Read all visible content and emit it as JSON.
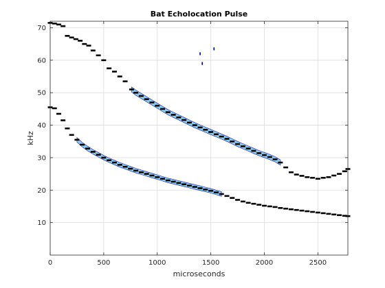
{
  "chart_data": {
    "type": "scatter",
    "title": "Bat Echolocation Pulse",
    "xlabel": "microseconds",
    "ylabel": "kHz",
    "xlim": [
      0,
      2780
    ],
    "ylim": [
      0,
      72
    ],
    "xticks": [
      0,
      500,
      1000,
      1500,
      2000,
      2500
    ],
    "yticks": [
      10,
      20,
      30,
      40,
      50,
      60,
      70
    ],
    "grid": true,
    "series": [
      {
        "color": "#000000",
        "x": [
          0,
          40,
          80,
          120,
          160,
          200,
          240,
          280,
          320,
          360,
          400,
          450,
          500,
          550,
          600,
          650,
          700,
          760,
          800,
          850,
          900,
          950,
          1000,
          1050,
          1100,
          1150,
          1200,
          1250,
          1300,
          1350,
          1400,
          1450,
          1500,
          1550,
          1600,
          1650,
          1700,
          1750,
          1800,
          1850,
          1900,
          1950,
          2000,
          2050,
          2100,
          2150,
          2200,
          2250,
          2300,
          2350,
          2400,
          2450,
          2500,
          2550,
          2600,
          2650,
          2700,
          2750,
          2780
        ],
        "y": [
          71.5,
          71.3,
          71.0,
          70.5,
          67.5,
          67.0,
          66.5,
          66.0,
          65.0,
          64.5,
          63.0,
          61.5,
          60.0,
          57.5,
          56.5,
          55.0,
          53.5,
          51.0,
          50.0,
          49.0,
          48.0,
          47.0,
          46.0,
          45.0,
          44.0,
          43.2,
          42.4,
          41.6,
          40.8,
          40.0,
          39.3,
          38.6,
          37.9,
          37.2,
          36.5,
          35.8,
          35.0,
          34.2,
          33.5,
          32.8,
          32.1,
          31.4,
          30.8,
          30.2,
          29.5,
          28.5,
          27.0,
          25.5,
          24.8,
          24.4,
          24.0,
          23.8,
          23.5,
          23.8,
          24.0,
          24.5,
          25.0,
          25.8,
          26.5
        ]
      },
      {
        "color": "#000000",
        "x": [
          0,
          40,
          80,
          120,
          160,
          200,
          250,
          300,
          350,
          400,
          450,
          500,
          550,
          600,
          650,
          700,
          750,
          800,
          850,
          900,
          950,
          1000,
          1050,
          1100,
          1150,
          1200,
          1250,
          1300,
          1350,
          1400,
          1450,
          1500,
          1550,
          1600,
          1650,
          1700,
          1750,
          1800,
          1850,
          1900,
          1950,
          2000,
          2050,
          2100,
          2150,
          2200,
          2250,
          2300,
          2350,
          2400,
          2450,
          2500,
          2550,
          2600,
          2650,
          2700,
          2750,
          2780
        ],
        "y": [
          45.5,
          45.2,
          43.5,
          41.5,
          39.0,
          37.0,
          35.5,
          34.0,
          32.8,
          31.8,
          30.9,
          30.0,
          29.2,
          28.5,
          27.8,
          27.2,
          26.6,
          26.0,
          25.5,
          25.0,
          24.5,
          24.0,
          23.5,
          23.0,
          22.6,
          22.2,
          21.8,
          21.4,
          21.0,
          20.6,
          20.2,
          19.8,
          19.3,
          18.8,
          18.2,
          17.6,
          17.0,
          16.5,
          16.1,
          15.8,
          15.5,
          15.2,
          15.0,
          14.8,
          14.5,
          14.3,
          14.1,
          13.9,
          13.7,
          13.5,
          13.3,
          13.1,
          12.9,
          12.7,
          12.5,
          12.3,
          12.1,
          12.0
        ]
      },
      {
        "color": "#0000cc",
        "x": [
          1400,
          1420,
          1530
        ],
        "y": [
          62.0,
          59.0,
          63.5
        ]
      }
    ]
  }
}
